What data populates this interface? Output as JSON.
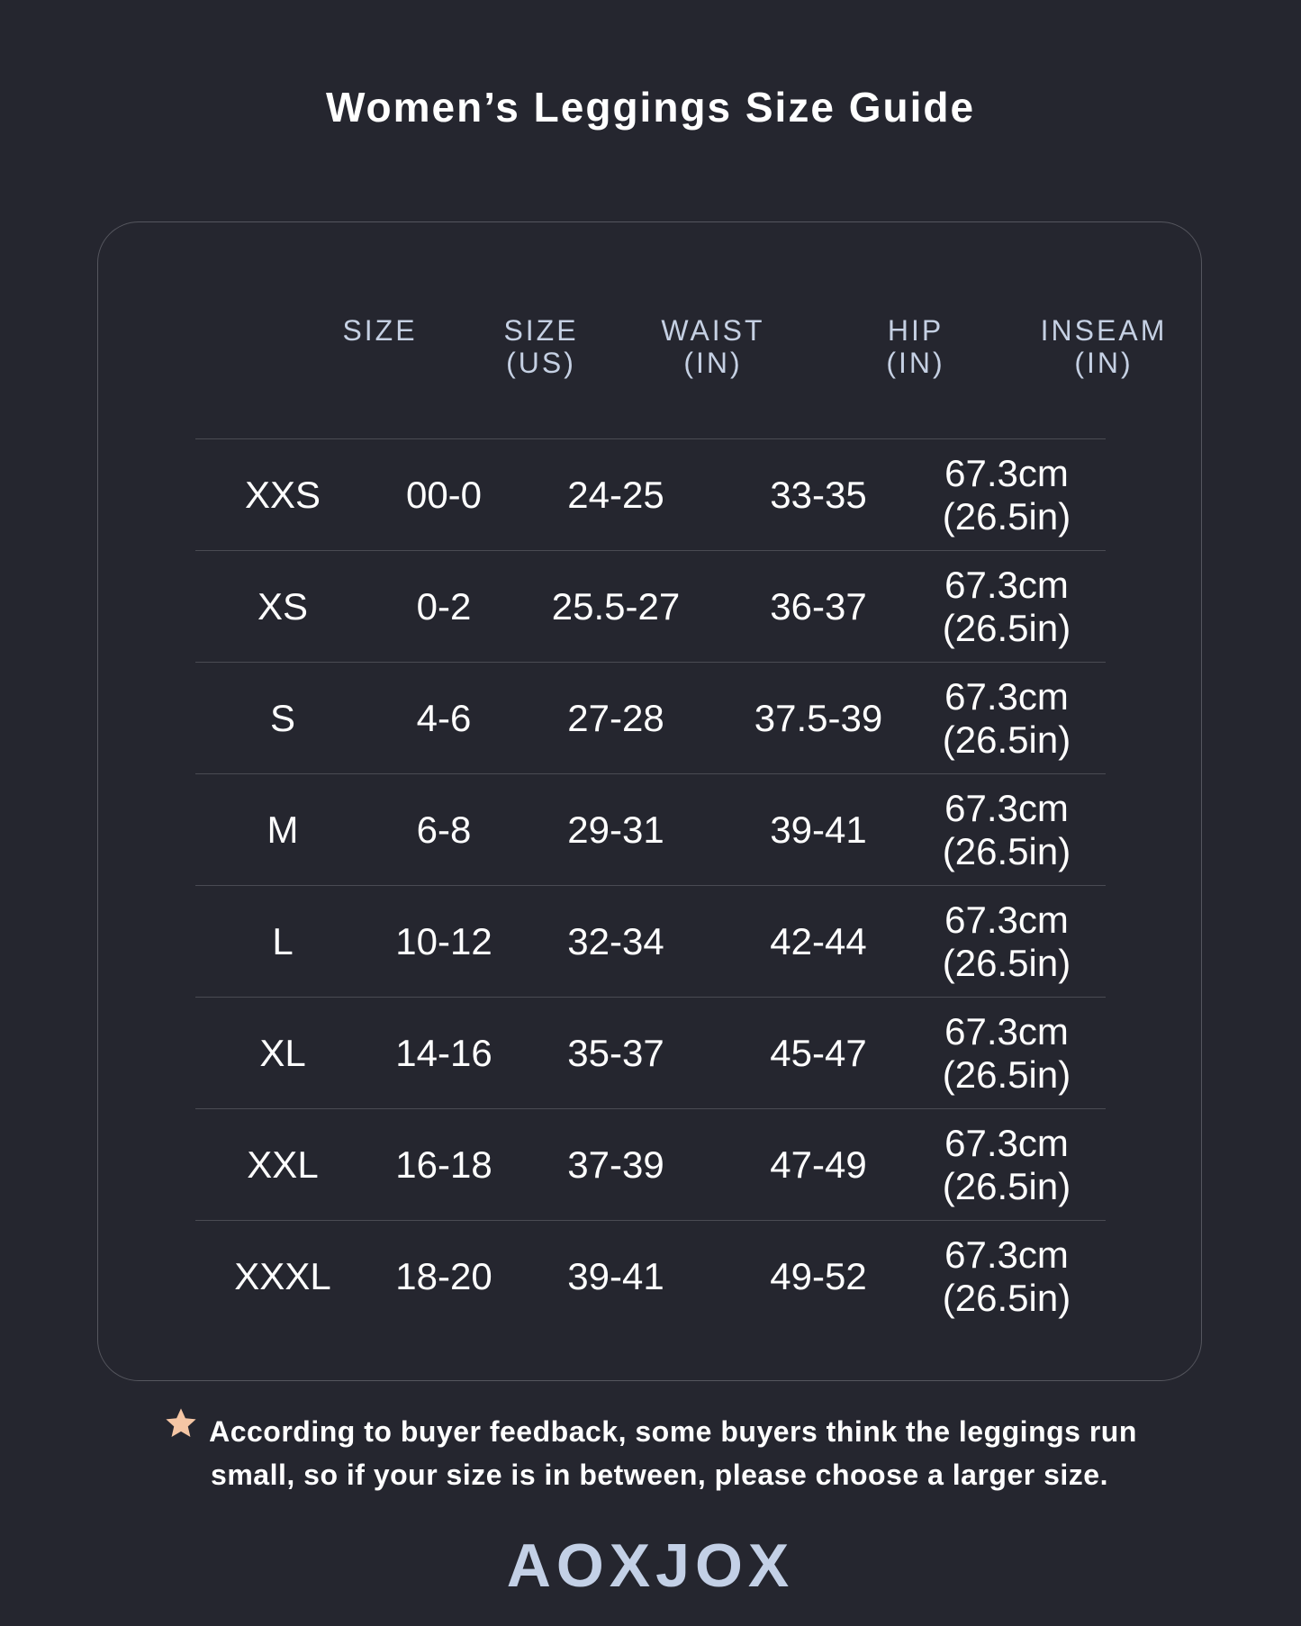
{
  "title": "Women’s Leggings Size Guide",
  "table": {
    "headers": [
      [
        "SIZE",
        ""
      ],
      [
        "SIZE",
        "(US)"
      ],
      [
        "WAIST",
        "(IN)"
      ],
      [
        "HIP",
        "(IN)"
      ],
      [
        "INSEAM",
        "(IN)"
      ]
    ],
    "rows": [
      [
        "XXS",
        "00-0",
        "24-25",
        "33-35",
        "67.3cm",
        "(26.5in)"
      ],
      [
        "XS",
        "0-2",
        "25.5-27",
        "36-37",
        "67.3cm",
        "(26.5in)"
      ],
      [
        "S",
        "4-6",
        "27-28",
        "37.5-39",
        "67.3cm",
        "(26.5in)"
      ],
      [
        "M",
        "6-8",
        "29-31",
        "39-41",
        "67.3cm",
        "(26.5in)"
      ],
      [
        "L",
        "10-12",
        "32-34",
        "42-44",
        "67.3cm",
        "(26.5in)"
      ],
      [
        "XL",
        "14-16",
        "35-37",
        "45-47",
        "67.3cm",
        "(26.5in)"
      ],
      [
        "XXL",
        "16-18",
        "37-39",
        "47-49",
        "67.3cm",
        "(26.5in)"
      ],
      [
        "XXXL",
        "18-20",
        "39-41",
        "49-52",
        "67.3cm",
        "(26.5in)"
      ]
    ]
  },
  "note": {
    "icon": "star-icon",
    "line1": "According to buyer feedback, some buyers think the leggings run",
    "line2": "small, so if your size is in between, please choose a larger size."
  },
  "logo": "AOXJOX",
  "colors": {
    "background": "#25262f",
    "header": "#c5d0e3",
    "star": "#f5c6a5",
    "logo": "#c3d0e6"
  }
}
